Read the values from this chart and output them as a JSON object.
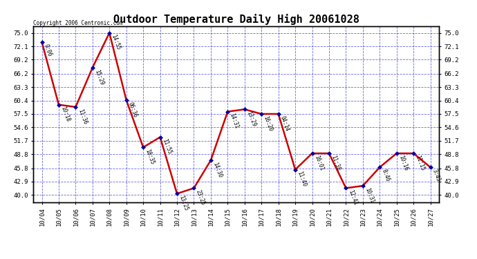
{
  "title": "Outdoor Temperature Daily High 20061028",
  "copyright": "Copyright 2006 Centronic.com",
  "dates": [
    "10/04",
    "10/05",
    "10/06",
    "10/07",
    "10/08",
    "10/09",
    "10/10",
    "10/11",
    "10/12",
    "10/13",
    "10/14",
    "10/15",
    "10/16",
    "10/17",
    "10/18",
    "10/19",
    "10/20",
    "10/21",
    "10/22",
    "10/23",
    "10/24",
    "10/25",
    "10/26",
    "10/27"
  ],
  "values": [
    73.0,
    59.5,
    59.0,
    67.5,
    75.0,
    60.5,
    50.3,
    52.5,
    40.3,
    41.5,
    47.5,
    58.0,
    58.5,
    57.5,
    57.5,
    45.5,
    49.0,
    49.0,
    41.5,
    42.0,
    46.0,
    49.0,
    49.0,
    46.0
  ],
  "times": [
    "0:06",
    "10:18",
    "11:36",
    "15:29",
    "14:55",
    "06:36",
    "18:35",
    "11:55",
    "13:25",
    "23:25",
    "14:30",
    "14:31",
    "13:29",
    "16:20",
    "04:14",
    "11:40",
    "16:01",
    "11:38",
    "12:41",
    "10:31",
    "8:46",
    "10:16",
    "11:15",
    "3:43"
  ],
  "yticks": [
    40.0,
    42.9,
    45.8,
    48.8,
    51.7,
    54.6,
    57.5,
    60.4,
    63.3,
    66.2,
    69.2,
    72.1,
    75.0
  ],
  "line_color": "#cc0000",
  "marker_color": "#0000aa",
  "grid_color": "#0000cc",
  "background_color": "#ffffff",
  "text_color": "#000000",
  "ylim_min": 38.5,
  "ylim_max": 76.5
}
